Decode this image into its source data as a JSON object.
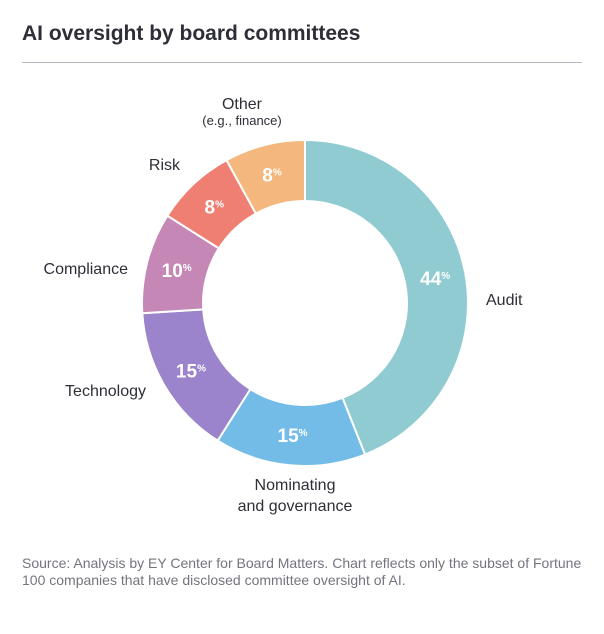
{
  "title": "AI oversight by board committees",
  "chart_data": {
    "type": "pie",
    "variant": "donut",
    "categories": [
      "Audit",
      "Nominating and governance",
      "Technology",
      "Compliance",
      "Risk",
      "Other (e.g., finance)"
    ],
    "values": [
      44,
      15,
      15,
      10,
      8,
      8
    ],
    "unit": "%",
    "colors": [
      "#8fcbd0",
      "#74bce8",
      "#9b84cb",
      "#c487b6",
      "#ef7f72",
      "#f4b77d"
    ],
    "labels": [
      {
        "lines": [
          "Audit"
        ]
      },
      {
        "lines": [
          "Nominating",
          "and governance"
        ]
      },
      {
        "lines": [
          "Technology"
        ]
      },
      {
        "lines": [
          "Compliance"
        ]
      },
      {
        "lines": [
          "Risk"
        ]
      },
      {
        "lines": [
          "Other"
        ],
        "sub": "(e.g., finance)"
      }
    ]
  },
  "source": "Source: Analysis by EY Center for Board Matters. Chart reflects only the subset of Fortune 100 companies that have disclosed committee oversight of AI."
}
